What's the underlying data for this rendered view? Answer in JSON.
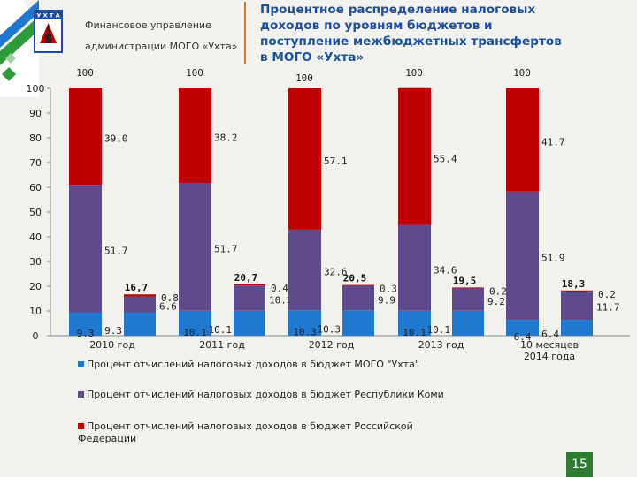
{
  "header": {
    "org_line1": "Финансовое управление",
    "org_line2": "администрации МОГО «Ухта»",
    "emblem_text": "У Х Т А",
    "title_lines": [
      "Процентное распределение налоговых",
      "доходов по уровням бюджетов и",
      "поступление межбюджетных трансфертов",
      "в МОГО «Ухта»"
    ]
  },
  "colors": {
    "title": "#1b4fa0",
    "ugo": "#1f78d0",
    "komi": "#5f4b8b",
    "rf": "#c00000",
    "accent_line": "#d07a2c",
    "page_badge": "#2e7d32"
  },
  "chart_data": {
    "type": "bar",
    "stacked": true,
    "ylim": [
      0,
      100
    ],
    "yticks": [
      "0",
      "10",
      "20",
      "30",
      "40",
      "50",
      "60",
      "70",
      "80",
      "90",
      "100"
    ],
    "categories": [
      "2010 год",
      "2011 год",
      "2012 год",
      "2013 год",
      "10 месяцев 2014 года"
    ],
    "category_labels": [
      [
        "2010 год"
      ],
      [
        "2011 год"
      ],
      [
        "2012 год"
      ],
      [
        "2013 год"
      ],
      [
        "10 месяцев",
        "2014 года"
      ]
    ],
    "series": [
      {
        "name": "Процент отчислений налоговых доходов в бюджет МОГО \"Ухта\"",
        "key": "ugo"
      },
      {
        "name": "Процент отчислений налоговых доходов в бюджет Республики Коми",
        "key": "komi"
      },
      {
        "name": "Процент отчислений налоговых доходов в бюджет Российской Федерации",
        "key": "rf"
      }
    ],
    "groups": [
      {
        "main": {
          "ugo": 9.3,
          "komi": 51.7,
          "rf": 39.0,
          "labels": [
            "9.3",
            "51.7",
            "39.0"
          ],
          "total_label": "100"
        },
        "transfer": {
          "ugo": 9.3,
          "komi": 6.6,
          "rf": 0.8,
          "labels": [
            "9.3",
            "6.6",
            "0.8"
          ],
          "total_label": "16,7"
        }
      },
      {
        "main": {
          "ugo": 10.1,
          "komi": 51.7,
          "rf": 38.2,
          "labels": [
            "10.1",
            "51.7",
            "38.2"
          ],
          "total_label": "100"
        },
        "transfer": {
          "ugo": 10.1,
          "komi": 10.2,
          "rf": 0.4,
          "labels": [
            "10.1",
            "10.2",
            "0.4"
          ],
          "total_label": "20,7"
        }
      },
      {
        "main": {
          "ugo": 10.3,
          "komi": 32.6,
          "rf": 57.1,
          "labels": [
            "10.3",
            "32.6",
            "57.1"
          ],
          "total_label": "100"
        },
        "transfer": {
          "ugo": 10.3,
          "komi": 9.9,
          "rf": 0.3,
          "labels": [
            "10.3",
            "9.9",
            "0.3"
          ],
          "total_label": "20,5"
        }
      },
      {
        "main": {
          "ugo": 10.1,
          "komi": 34.6,
          "rf": 55.4,
          "labels": [
            "10.1",
            "34.6",
            "55.4"
          ],
          "total_label": "100"
        },
        "transfer": {
          "ugo": 10.1,
          "komi": 9.2,
          "rf": 0.2,
          "labels": [
            "10.1",
            "9.2",
            "0.2"
          ],
          "total_label": "19,5"
        }
      },
      {
        "main": {
          "ugo": 6.4,
          "komi": 51.9,
          "rf": 41.7,
          "labels": [
            "6.4",
            "51.9",
            "41.7"
          ],
          "total_label": "100"
        },
        "transfer": {
          "ugo": 6.4,
          "komi": 11.7,
          "rf": 0.2,
          "labels": [
            "6.4",
            "11.7",
            "0.2"
          ],
          "total_label": "18,3"
        }
      }
    ],
    "legend_position": "bottom-left",
    "grid": false
  },
  "legend": {
    "ugo_line1": "Процент отчислений налоговых доходов в бюджет МОГО \"Ухта\"",
    "komi_line1": "Процент отчислений налоговых доходов в бюджет Республики Коми",
    "rf_line1": "Процент отчислений налоговых доходов в бюджет Российской",
    "rf_line2": "Федерации"
  },
  "page_number": "15"
}
